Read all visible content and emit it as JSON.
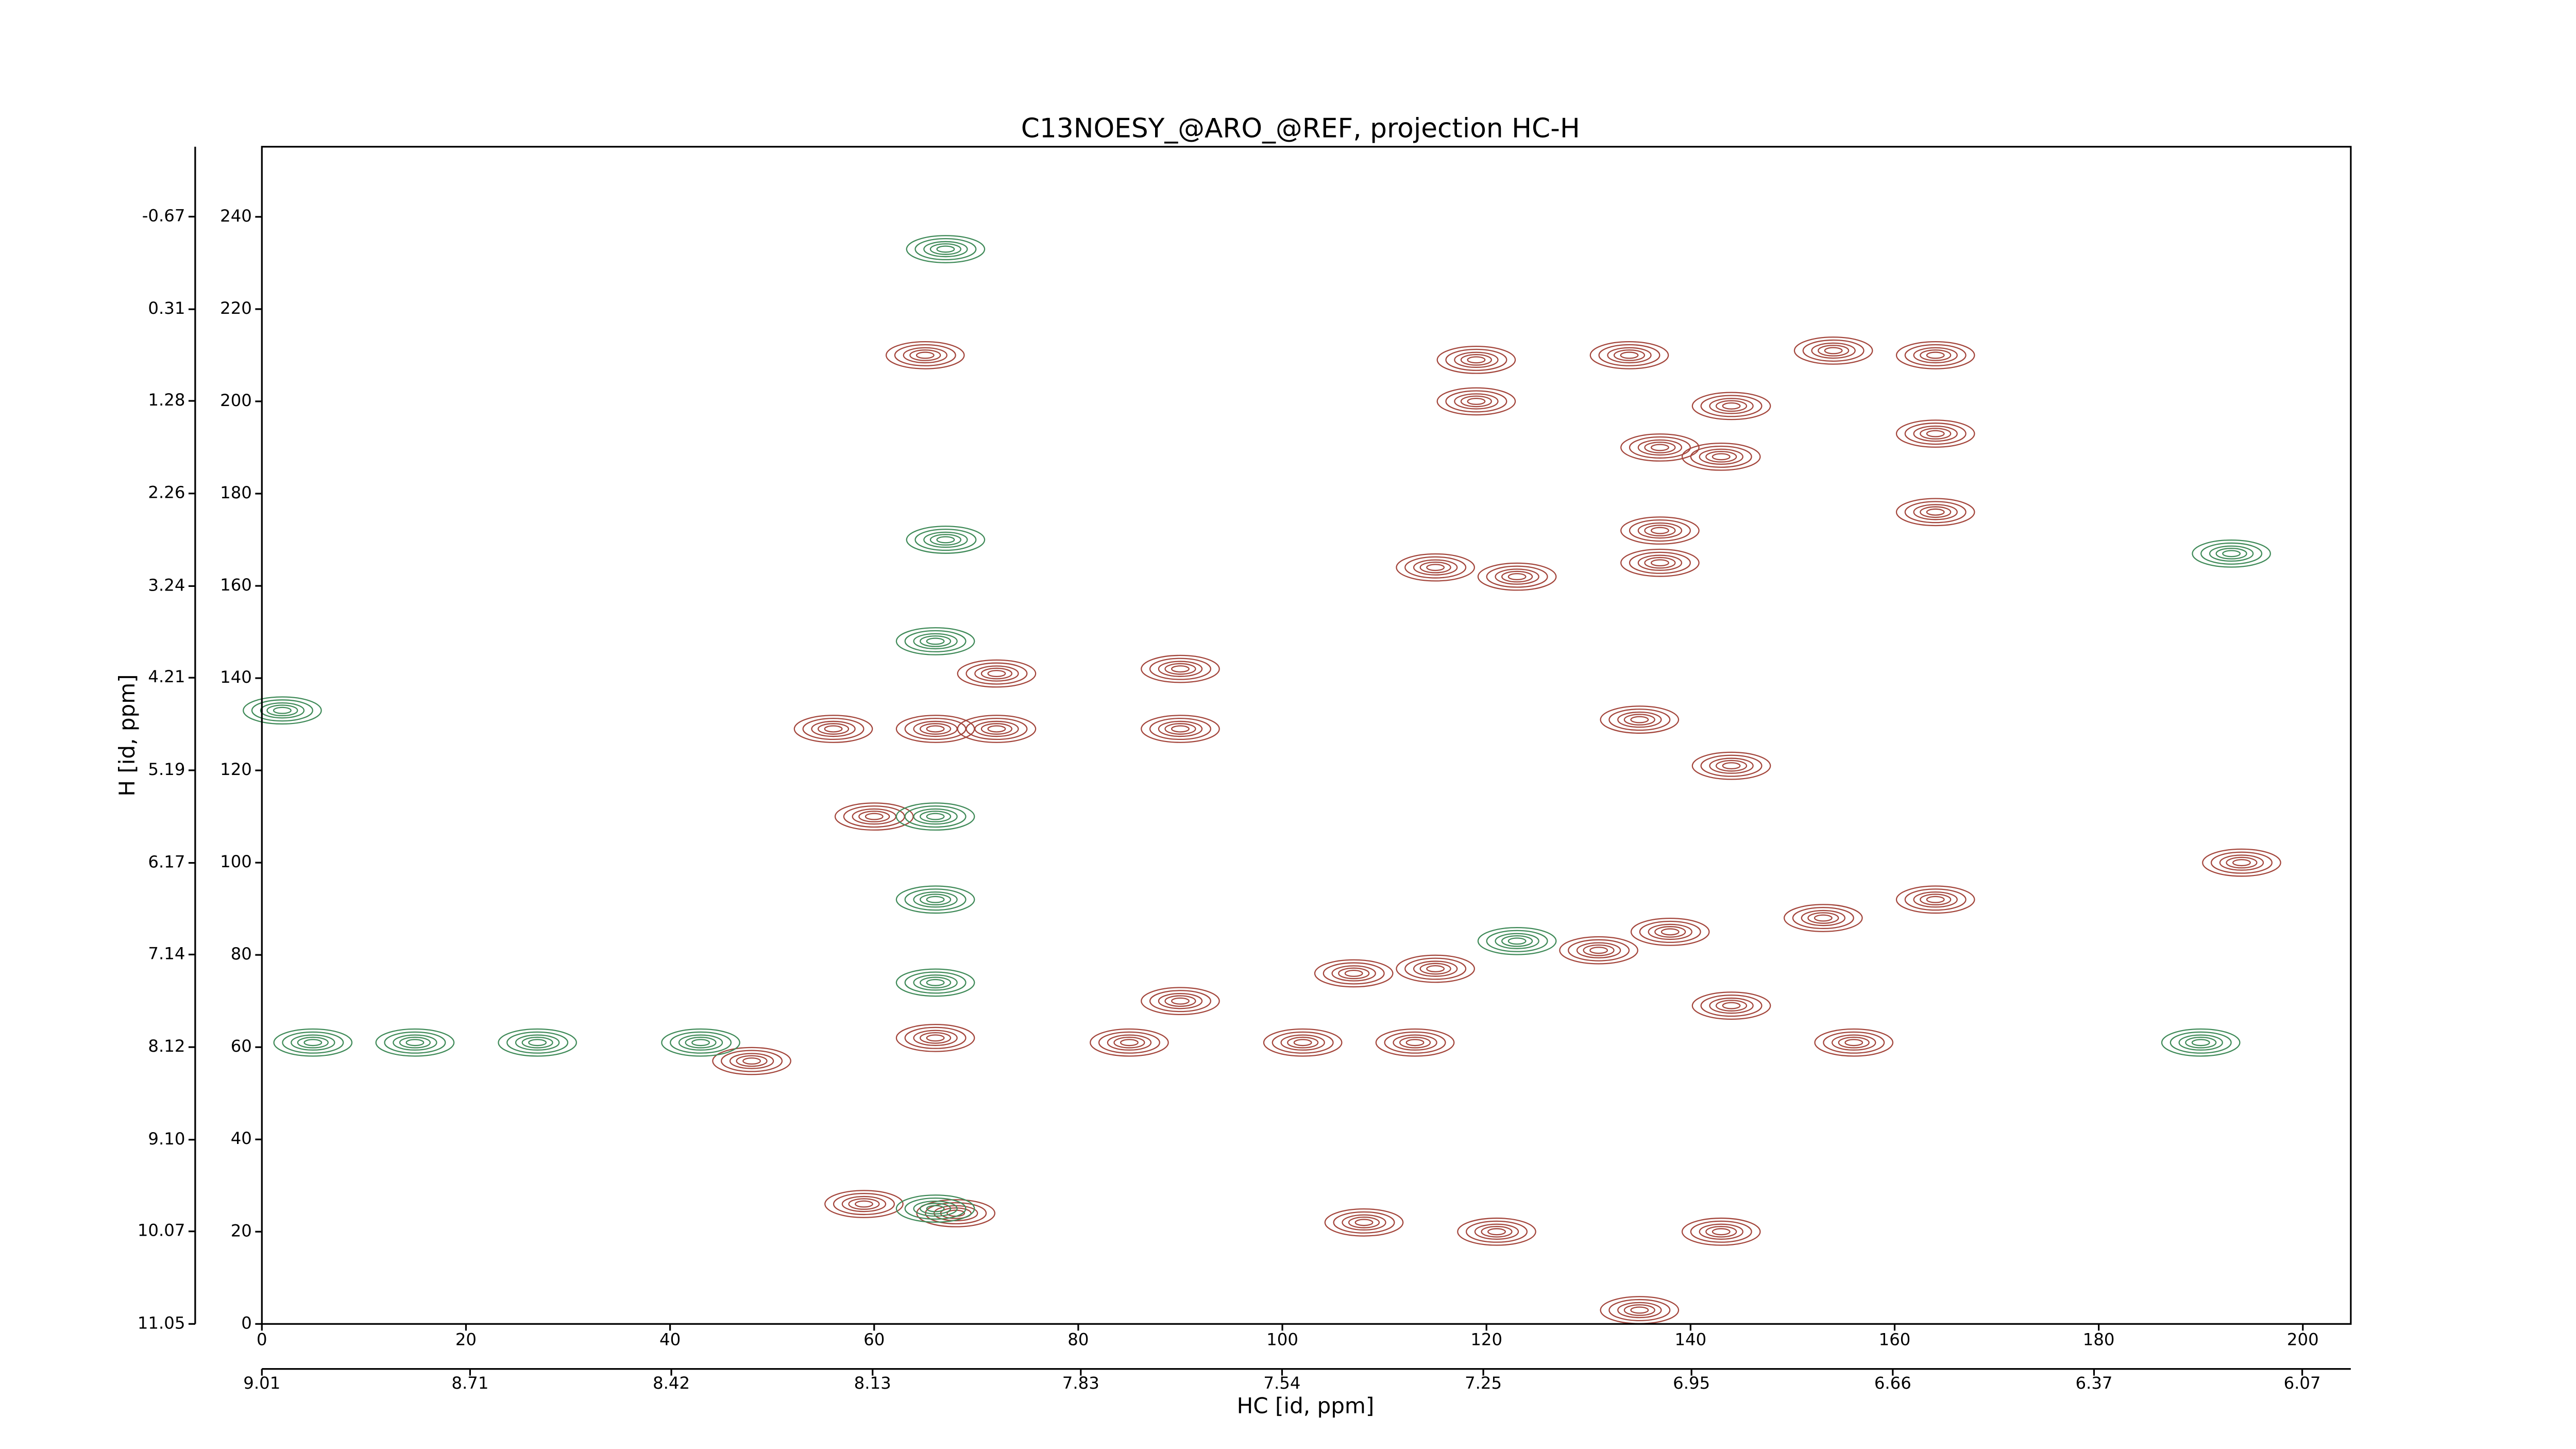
{
  "chart_data": {
    "type": "contour",
    "title": "C13NOESY_@ARO_@REF, projection HC-H",
    "xlabel": "HC [id, ppm]",
    "ylabel": "H [id, ppm]",
    "xlim": [
      0,
      204.7
    ],
    "xticks": [
      0,
      20,
      40,
      60,
      80,
      100,
      120,
      140,
      160,
      180,
      200
    ],
    "ylim": [
      0,
      255.2
    ],
    "yticks": [
      0,
      20,
      40,
      60,
      80,
      100,
      120,
      140,
      160,
      180,
      200,
      220,
      240
    ],
    "x2lim": [
      9.01,
      6.0
    ],
    "x2ticks": [
      9.01,
      8.71,
      8.42,
      8.13,
      7.83,
      7.54,
      7.25,
      6.95,
      6.66,
      6.37,
      6.07
    ],
    "y2lim": [
      11.05,
      -1.41
    ],
    "y2ticks": [
      11.05,
      10.07,
      {
        "value": 9.1,
        "label": "9.10"
      },
      8.12,
      7.14,
      6.17,
      5.19,
      4.21,
      3.24,
      2.26,
      1.28,
      0.31,
      -0.67
    ],
    "series": [
      {
        "color": "#a3453b",
        "x": [
          65,
          154,
          164,
          119,
          134,
          119,
          144,
          164,
          137,
          143,
          164,
          137,
          137,
          115,
          123,
          90,
          72,
          56,
          66,
          72,
          90,
          135,
          144,
          60,
          194,
          164,
          153,
          138,
          131,
          115,
          107,
          90,
          144,
          48,
          66,
          85,
          102,
          113,
          156,
          59,
          68,
          108,
          121,
          143,
          135
        ],
        "y": [
          210,
          211,
          210,
          209,
          210,
          200,
          199,
          193,
          190,
          188,
          176,
          172,
          165,
          164,
          162,
          142,
          141,
          129,
          129,
          129,
          129,
          131,
          121,
          110,
          100,
          92,
          88,
          85,
          81,
          77,
          76,
          70,
          69,
          57,
          62,
          61,
          61,
          61,
          61,
          26,
          24,
          22,
          20,
          20,
          3
        ]
      },
      {
        "color": "#3f8a58",
        "x": [
          67,
          67,
          66,
          2,
          66,
          66,
          66,
          5,
          15,
          27,
          43,
          66,
          190,
          193,
          123
        ],
        "y": [
          233,
          170,
          148,
          133,
          110,
          92,
          74,
          61,
          61,
          61,
          61,
          25,
          61,
          167,
          83
        ]
      }
    ]
  }
}
